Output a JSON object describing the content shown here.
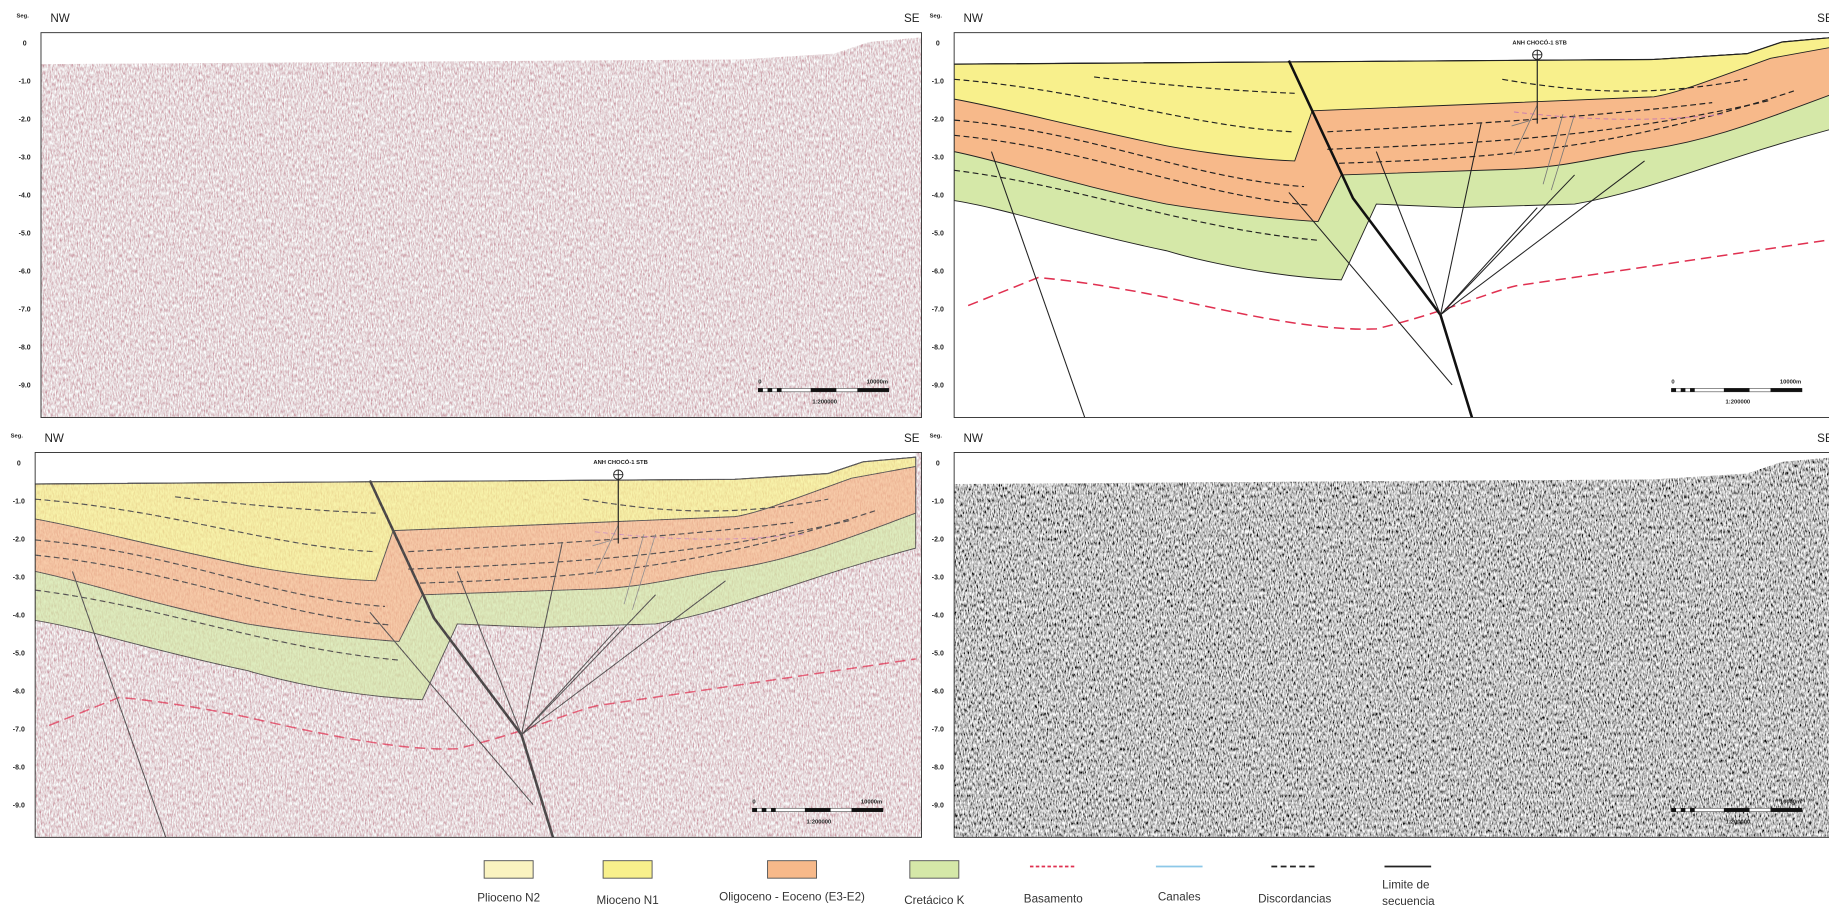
{
  "panels": [
    {
      "seg_label": "Seg.",
      "left_label": "NW",
      "right_label": "SE",
      "depth_ticks": [
        "0",
        "-1.0",
        "-2.0",
        "-3.0",
        "-4.0",
        "-5.0",
        "-6.0",
        "-7.0",
        "-8.0",
        "-9.0"
      ],
      "scale": {
        "start": "0",
        "end": "10000m",
        "ratio": "1:200000"
      }
    },
    {
      "seg_label": "Seg.",
      "left_label": "NW",
      "right_label": "SE",
      "depth_ticks": [
        "0",
        "-1.0",
        "-2.0",
        "-3.0",
        "-4.0",
        "-5.0",
        "-6.0",
        "-7.0",
        "-8.0",
        "-9.0"
      ],
      "scale": {
        "start": "0",
        "end": "10000m",
        "ratio": "1:200000"
      },
      "well": "ANH CHOCÓ-1 STB"
    },
    {
      "seg_label": "Seg.",
      "left_label": "NW",
      "right_label": "SE",
      "depth_ticks": [
        "0",
        "-1.0",
        "-2.0",
        "-3.0",
        "-4.0",
        "-5.0",
        "-6.0",
        "-7.0",
        "-8.0",
        "-9.0"
      ],
      "scale": {
        "start": "0",
        "end": "10000m",
        "ratio": "1:200000"
      },
      "well": "ANH CHOCÓ-1 STB"
    },
    {
      "seg_label": "Seg.",
      "left_label": "NW",
      "right_label": "SE",
      "depth_ticks": [
        "0",
        "-1.0",
        "-2.0",
        "-3.0",
        "-4.0",
        "-5.0",
        "-6.0",
        "-7.0",
        "-8.0",
        "-9.0"
      ],
      "scale": {
        "start": "0",
        "end": "10000m",
        "ratio": "1:200000"
      }
    }
  ],
  "legend": [
    {
      "label": "Plioceno N2"
    },
    {
      "label": "Mioceno N1"
    },
    {
      "label": "Oligoceno - Eoceno (E3-E2)"
    },
    {
      "label": "Cretácico K"
    },
    {
      "label": "Basamento"
    },
    {
      "label": "Canales"
    },
    {
      "label": "Discordancias"
    },
    {
      "label": [
        "Limite de",
        "secuencia"
      ]
    }
  ]
}
